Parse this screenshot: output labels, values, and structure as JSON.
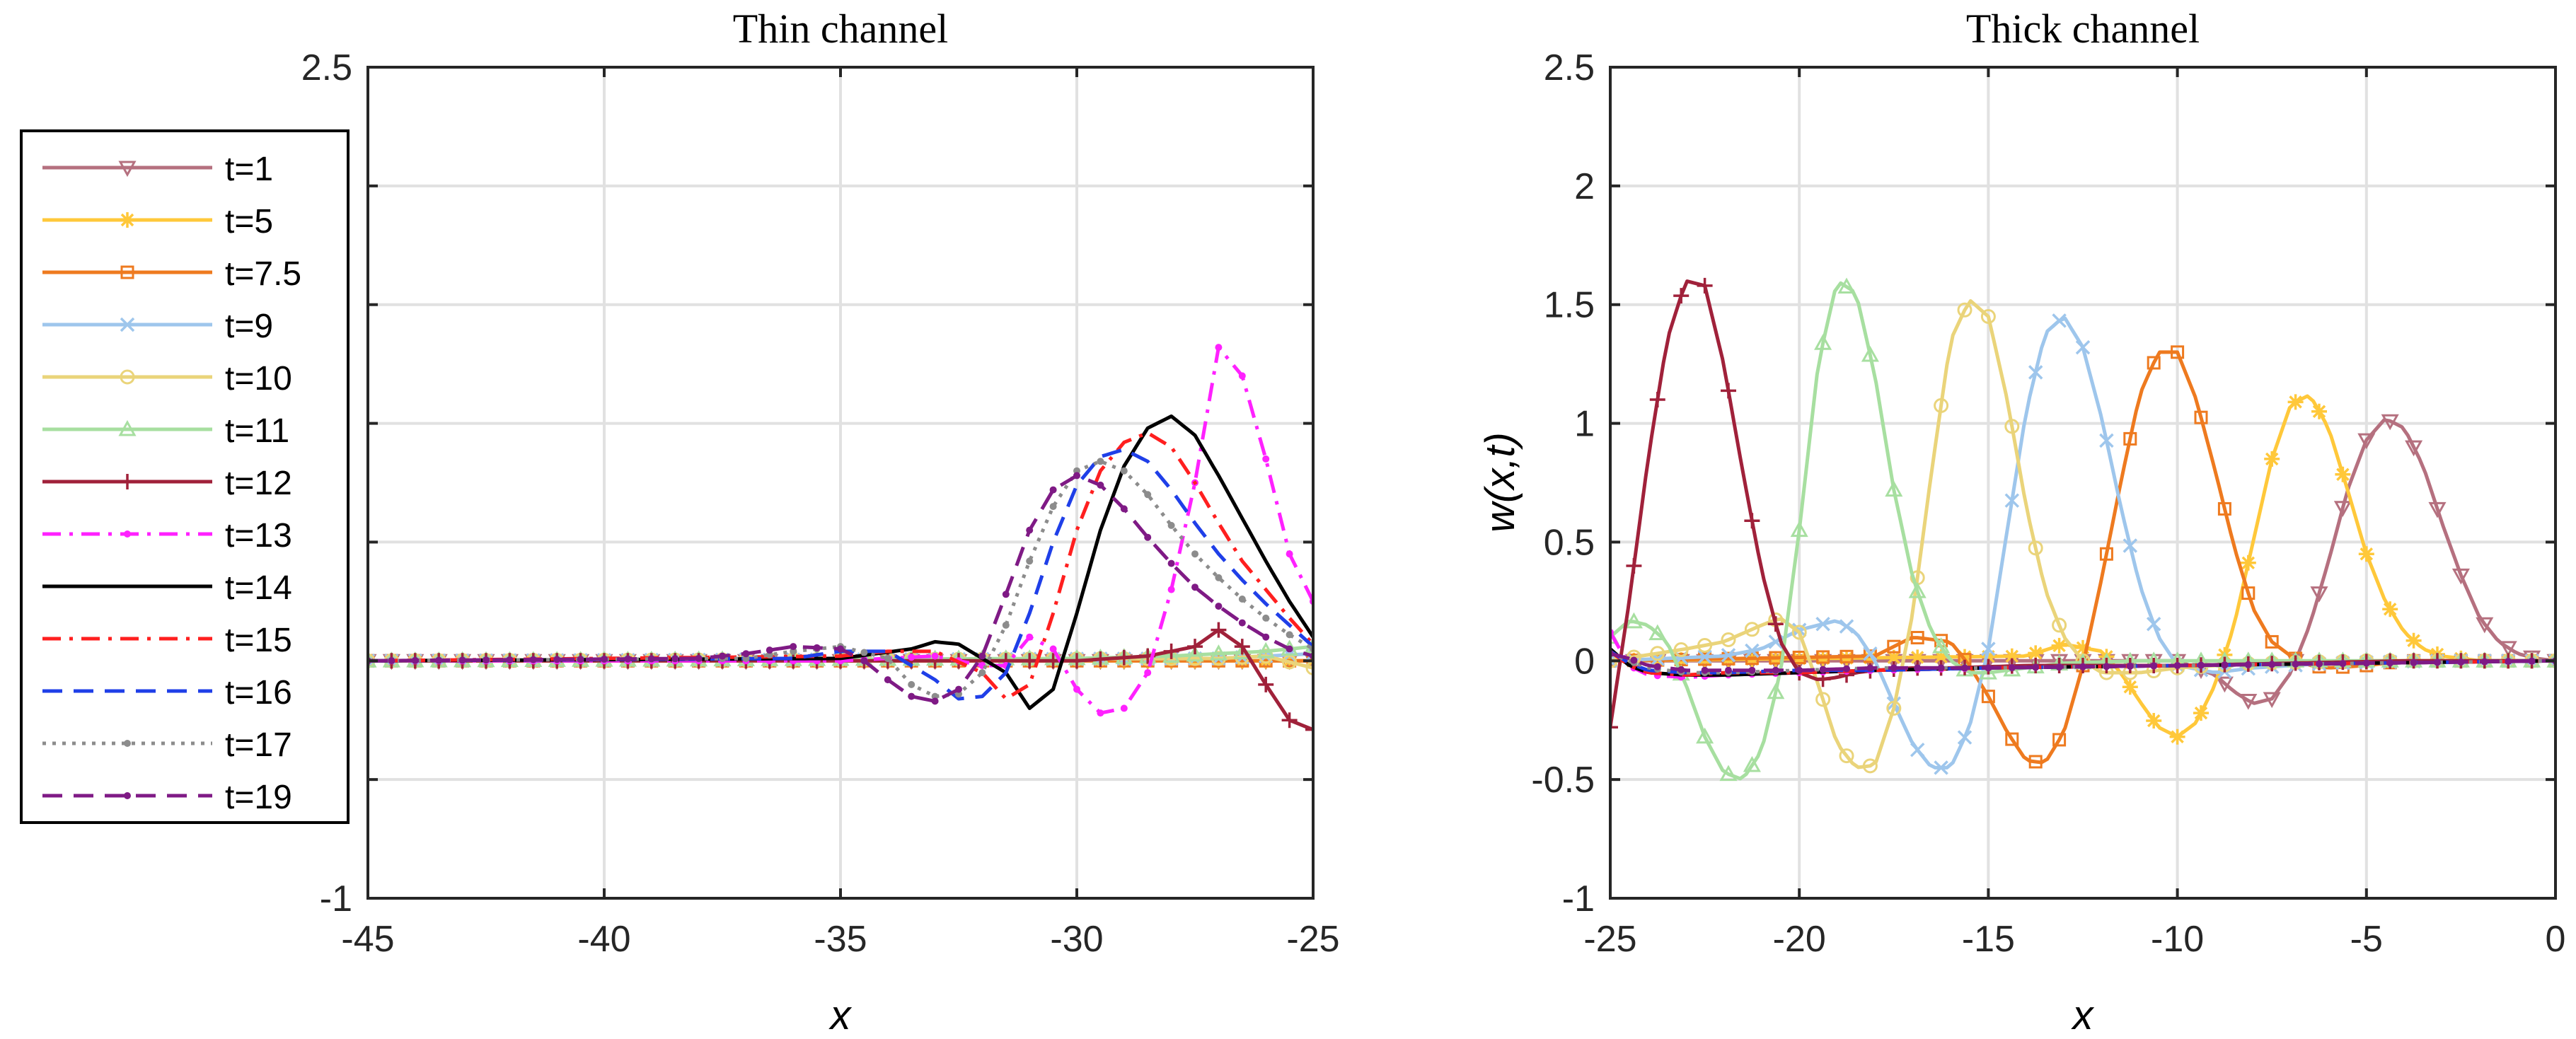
{
  "chart_data": [
    {
      "type": "line",
      "title": "Thin channel",
      "xlabel": "x",
      "ylabel": "",
      "xlim": [
        -45,
        -25
      ],
      "ylim": [
        -1,
        2.5
      ],
      "xticks": [
        -45,
        -40,
        -35,
        -30,
        -25
      ],
      "yticks": [
        -1,
        -0.5,
        0,
        0.5,
        1,
        1.5,
        2,
        2.5
      ],
      "ytick_labels_shown": [
        -1,
        2.5
      ],
      "grid": true,
      "series": [
        {
          "name": "t=1",
          "x": [
            -45,
            -25
          ],
          "y": [
            0,
            0
          ]
        },
        {
          "name": "t=5",
          "x": [
            -45,
            -25
          ],
          "y": [
            0,
            0
          ]
        },
        {
          "name": "t=7.5",
          "x": [
            -45,
            -25
          ],
          "y": [
            0,
            0
          ]
        },
        {
          "name": "t=9",
          "x": [
            -45,
            -27,
            -26,
            -25
          ],
          "y": [
            0,
            0.01,
            0.02,
            0.03
          ]
        },
        {
          "name": "t=10",
          "x": [
            -45,
            -27,
            -26,
            -25
          ],
          "y": [
            0,
            0.01,
            0.02,
            -0.03
          ]
        },
        {
          "name": "t=11",
          "x": [
            -45,
            -30,
            -28,
            -26,
            -25
          ],
          "y": [
            0,
            0.01,
            0.02,
            0.04,
            0.06
          ]
        },
        {
          "name": "t=12",
          "x": [
            -45,
            -30,
            -28.5,
            -27.5,
            -27,
            -26.5,
            -26,
            -25.5,
            -25
          ],
          "y": [
            0,
            0,
            0.02,
            0.06,
            0.13,
            0.06,
            -0.1,
            -0.25,
            -0.29
          ]
        },
        {
          "name": "t=13",
          "x": [
            -45,
            -35,
            -33,
            -32,
            -31.5,
            -31,
            -30.5,
            -30,
            -29.5,
            -29,
            -28.5,
            -28,
            -27.5,
            -27,
            -26.5,
            -26,
            -25.5,
            -25
          ],
          "y": [
            0,
            0,
            0.02,
            -0.02,
            -0.02,
            0.1,
            0.05,
            -0.12,
            -0.22,
            -0.2,
            -0.05,
            0.3,
            0.75,
            1.32,
            1.2,
            0.85,
            0.45,
            0.25
          ]
        },
        {
          "name": "t=14",
          "x": [
            -45,
            -35,
            -33.5,
            -33,
            -32.5,
            -31.5,
            -31,
            -30.5,
            -30,
            -29.5,
            -29,
            -28.5,
            -28,
            -27.5,
            -27,
            -26.5,
            -26,
            -25.5,
            -25
          ],
          "y": [
            0,
            0.01,
            0.05,
            0.08,
            0.07,
            -0.05,
            -0.2,
            -0.12,
            0.2,
            0.55,
            0.82,
            0.98,
            1.03,
            0.95,
            0.78,
            0.6,
            0.42,
            0.25,
            0.1
          ]
        },
        {
          "name": "t=15",
          "x": [
            -45,
            -35,
            -34,
            -33,
            -32,
            -31.5,
            -31,
            -30.5,
            -30,
            -29.5,
            -29,
            -28.5,
            -28,
            -27.5,
            -27,
            -26.5,
            -26,
            -25.5,
            -25
          ],
          "y": [
            0,
            0.02,
            0.04,
            0.04,
            -0.05,
            -0.16,
            -0.1,
            0.2,
            0.55,
            0.8,
            0.92,
            0.96,
            0.9,
            0.75,
            0.58,
            0.42,
            0.3,
            0.18,
            0.07
          ]
        },
        {
          "name": "t=16",
          "x": [
            -45,
            -36,
            -35,
            -34,
            -33,
            -32.5,
            -32,
            -31.5,
            -31,
            -30.5,
            -30,
            -29.5,
            -29,
            -28.5,
            -28,
            -27.5,
            -27,
            -26.5,
            -26,
            -25.5,
            -25
          ],
          "y": [
            0,
            0.01,
            0.04,
            0.04,
            -0.08,
            -0.16,
            -0.15,
            -0.05,
            0.2,
            0.5,
            0.74,
            0.86,
            0.89,
            0.84,
            0.72,
            0.58,
            0.45,
            0.34,
            0.24,
            0.15,
            0.06
          ]
        },
        {
          "name": "t=17",
          "x": [
            -45,
            -37,
            -36,
            -35,
            -34,
            -33.5,
            -33,
            -32.5,
            -32,
            -31.5,
            -31,
            -30.5,
            -30,
            -29.5,
            -29,
            -28.5,
            -28,
            -27.5,
            -27,
            -26.5,
            -26,
            -25.5,
            -25
          ],
          "y": [
            0,
            0.01,
            0.04,
            0.06,
            0.01,
            -0.1,
            -0.15,
            -0.14,
            -0.05,
            0.15,
            0.42,
            0.65,
            0.8,
            0.84,
            0.8,
            0.7,
            0.57,
            0.45,
            0.35,
            0.26,
            0.18,
            0.11,
            0.05
          ]
        },
        {
          "name": "t=19",
          "x": [
            -45,
            -38,
            -37,
            -36,
            -35,
            -34.5,
            -34,
            -33.5,
            -33,
            -32.5,
            -32,
            -31.5,
            -31,
            -30.5,
            -30,
            -29.5,
            -29,
            -28.5,
            -28,
            -27.5,
            -27,
            -26.5,
            -26,
            -25.5,
            -25
          ],
          "y": [
            0,
            0.01,
            0.03,
            0.06,
            0.05,
            0.0,
            -0.08,
            -0.15,
            -0.17,
            -0.12,
            0.02,
            0.28,
            0.55,
            0.72,
            0.78,
            0.74,
            0.64,
            0.52,
            0.41,
            0.31,
            0.23,
            0.16,
            0.1,
            0.05,
            0.02
          ]
        }
      ]
    },
    {
      "type": "line",
      "title": "Thick channel",
      "xlabel": "x",
      "ylabel": "w(x,t)",
      "xlim": [
        -25,
        0
      ],
      "ylim": [
        -1,
        2.5
      ],
      "xticks": [
        -25,
        -20,
        -15,
        -10,
        -5,
        0
      ],
      "yticks": [
        -1,
        -0.5,
        0,
        0.5,
        1,
        1.5,
        2,
        2.5
      ],
      "grid": true,
      "series": [
        {
          "name": "t=1",
          "x": [
            -25,
            -10,
            -9,
            -8.5,
            -8,
            -7.5,
            -7,
            -6.5,
            -6,
            -5.5,
            -5,
            -4.5,
            -4,
            -3.5,
            -3,
            -2.5,
            -2,
            -1.5,
            -1,
            -0.5,
            0
          ],
          "y": [
            0,
            0,
            -0.06,
            -0.13,
            -0.18,
            -0.16,
            -0.05,
            0.15,
            0.42,
            0.72,
            0.93,
            1.02,
            0.98,
            0.82,
            0.58,
            0.36,
            0.18,
            0.08,
            0.03,
            0.01,
            0
          ]
        },
        {
          "name": "t=5",
          "x": [
            -25,
            -14,
            -13,
            -12,
            -11.5,
            -11,
            -10.5,
            -10,
            -9.5,
            -9,
            -8.5,
            -8,
            -7.5,
            -7,
            -6.5,
            -6,
            -5.5,
            -5,
            -4.5,
            -4,
            -3.5,
            -3,
            -2,
            -1,
            0
          ],
          "y": [
            0,
            0.02,
            0.07,
            0.04,
            -0.05,
            -0.17,
            -0.28,
            -0.32,
            -0.26,
            -0.1,
            0.15,
            0.5,
            0.85,
            1.08,
            1.12,
            0.98,
            0.72,
            0.45,
            0.25,
            0.12,
            0.05,
            0.02,
            0,
            0,
            0
          ]
        },
        {
          "name": "t=7.5",
          "x": [
            -25,
            -18,
            -17,
            -16,
            -15.5,
            -15,
            -14.5,
            -14,
            -13.5,
            -13,
            -12.5,
            -12,
            -11.5,
            -11,
            -10.5,
            -10,
            -9.5,
            -9,
            -8.5,
            -8,
            -7.5,
            -7,
            -6.5,
            -6,
            -5,
            -4,
            -2,
            0
          ],
          "y": [
            0,
            0.02,
            0.1,
            0.08,
            -0.02,
            -0.15,
            -0.3,
            -0.42,
            -0.43,
            -0.3,
            -0.02,
            0.35,
            0.75,
            1.12,
            1.3,
            1.3,
            1.1,
            0.8,
            0.48,
            0.22,
            0.08,
            0.02,
            -0.02,
            -0.03,
            -0.02,
            0,
            0,
            0
          ]
        },
        {
          "name": "t=9",
          "x": [
            -25,
            -22,
            -21,
            -20,
            -19,
            -18.5,
            -18,
            -17.5,
            -17,
            -16.5,
            -16,
            -15.5,
            -15,
            -14.5,
            -14,
            -13.5,
            -13,
            -12.5,
            -12,
            -11.5,
            -11,
            -10.5,
            -10,
            -9,
            -8,
            -6,
            -3,
            0
          ],
          "y": [
            0,
            0.02,
            0.05,
            0.13,
            0.17,
            0.12,
            0.0,
            -0.18,
            -0.35,
            -0.45,
            -0.45,
            -0.28,
            0.05,
            0.55,
            1.05,
            1.38,
            1.45,
            1.32,
            1.02,
            0.65,
            0.32,
            0.1,
            -0.02,
            -0.05,
            -0.03,
            -0.01,
            0,
            0
          ]
        },
        {
          "name": "t=10",
          "x": [
            -25,
            -23,
            -22,
            -21,
            -20.5,
            -20,
            -19.5,
            -19,
            -18.5,
            -18,
            -17.5,
            -17,
            -16.5,
            -16,
            -15.5,
            -15,
            -14.5,
            -14,
            -13.5,
            -13,
            -12.5,
            -12,
            -11,
            -10,
            -8,
            -5,
            0
          ],
          "y": [
            0,
            0.05,
            0.08,
            0.15,
            0.18,
            0.12,
            -0.1,
            -0.35,
            -0.45,
            -0.44,
            -0.2,
            0.2,
            0.8,
            1.35,
            1.52,
            1.45,
            1.1,
            0.65,
            0.3,
            0.1,
            0.0,
            -0.05,
            -0.05,
            -0.03,
            -0.01,
            0,
            0
          ]
        },
        {
          "name": "t=11",
          "x": [
            -25,
            -24.5,
            -24,
            -23.5,
            -23,
            -22.5,
            -22,
            -21.5,
            -21,
            -20.5,
            -20,
            -19.5,
            -19,
            -18.5,
            -18,
            -17.5,
            -17,
            -16.5,
            -16,
            -15.5,
            -15,
            -14,
            -13,
            -11,
            -8,
            -5,
            0
          ],
          "y": [
            0.1,
            0.17,
            0.15,
            0.08,
            -0.1,
            -0.32,
            -0.47,
            -0.5,
            -0.38,
            -0.05,
            0.55,
            1.25,
            1.6,
            1.55,
            1.2,
            0.72,
            0.35,
            0.12,
            0.0,
            -0.05,
            -0.05,
            -0.03,
            -0.01,
            0,
            0,
            0,
            0
          ]
        },
        {
          "name": "t=12",
          "x": [
            -25,
            -24.5,
            -24,
            -23.5,
            -23,
            -22.5,
            -22,
            -21.5,
            -21,
            -20.5,
            -20,
            -19.5,
            -19,
            -18.5,
            -18,
            -17,
            -16,
            -14,
            -12,
            -10,
            -7,
            -4,
            -2,
            0
          ],
          "y": [
            -0.28,
            0.25,
            0.85,
            1.35,
            1.6,
            1.58,
            1.25,
            0.8,
            0.38,
            0.08,
            -0.05,
            -0.08,
            -0.07,
            -0.05,
            -0.04,
            -0.03,
            -0.03,
            -0.02,
            -0.02,
            -0.02,
            -0.01,
            0,
            0,
            0
          ]
        },
        {
          "name": "t=13",
          "x": [
            -25,
            -24.5,
            -24,
            -23,
            -22,
            -20,
            -18,
            -15,
            -10,
            -5,
            0
          ],
          "y": [
            0.12,
            -0.02,
            -0.06,
            -0.07,
            -0.06,
            -0.05,
            -0.04,
            -0.03,
            -0.02,
            -0.01,
            0
          ]
        },
        {
          "name": "t=14",
          "x": [
            -25,
            -24.5,
            -24,
            -23,
            -22,
            -20,
            -18,
            -15,
            -10,
            -5,
            0
          ],
          "y": [
            0.05,
            -0.02,
            -0.05,
            -0.06,
            -0.06,
            -0.05,
            -0.04,
            -0.03,
            -0.02,
            -0.01,
            0
          ]
        },
        {
          "name": "t=15",
          "x": [
            -25,
            -24.5,
            -24,
            -23,
            -22,
            -20,
            -18,
            -15,
            -10,
            -5,
            0
          ],
          "y": [
            0.04,
            -0.02,
            -0.05,
            -0.06,
            -0.05,
            -0.05,
            -0.04,
            -0.03,
            -0.02,
            -0.01,
            0
          ]
        },
        {
          "name": "t=16",
          "x": [
            -25,
            -24.5,
            -24,
            -23,
            -22,
            -20,
            -18,
            -15,
            -10,
            -5,
            0
          ],
          "y": [
            0.04,
            -0.01,
            -0.04,
            -0.05,
            -0.05,
            -0.04,
            -0.04,
            -0.03,
            -0.02,
            -0.01,
            0
          ]
        },
        {
          "name": "t=17",
          "x": [
            -25,
            -24.5,
            -24,
            -23,
            -22,
            -20,
            -18,
            -15,
            -10,
            -5,
            0
          ],
          "y": [
            0.03,
            0.0,
            -0.03,
            -0.05,
            -0.05,
            -0.04,
            -0.03,
            -0.03,
            -0.02,
            -0.01,
            0
          ]
        },
        {
          "name": "t=19",
          "x": [
            -25,
            -24.5,
            -24,
            -23,
            -22,
            -20,
            -18,
            -15,
            -10,
            -5,
            0
          ],
          "y": [
            0.03,
            0.01,
            -0.02,
            -0.04,
            -0.04,
            -0.04,
            -0.03,
            -0.03,
            -0.02,
            -0.01,
            0
          ]
        }
      ]
    }
  ],
  "legend": {
    "placement": "left",
    "entries": [
      {
        "label": "t=1",
        "color": "#B5707F",
        "dash": "solid",
        "marker": "triangle-down"
      },
      {
        "label": "t=5",
        "color": "#FFC83A",
        "dash": "solid",
        "marker": "star"
      },
      {
        "label": "t=7.5",
        "color": "#EE7A1F",
        "dash": "solid",
        "marker": "square"
      },
      {
        "label": "t=9",
        "color": "#9EC6EC",
        "dash": "solid",
        "marker": "x"
      },
      {
        "label": "t=10",
        "color": "#EAD47A",
        "dash": "solid",
        "marker": "circle"
      },
      {
        "label": "t=11",
        "color": "#A7DFA0",
        "dash": "solid",
        "marker": "triangle-up"
      },
      {
        "label": "t=12",
        "color": "#A0213A",
        "dash": "solid",
        "marker": "plus"
      },
      {
        "label": "t=13",
        "color": "#FF21FF",
        "dash": "dashdot",
        "marker": "dot"
      },
      {
        "label": "t=14",
        "color": "#000000",
        "dash": "solid",
        "marker": "none"
      },
      {
        "label": "t=15",
        "color": "#FF1F1F",
        "dash": "dashdot",
        "marker": "none"
      },
      {
        "label": "t=16",
        "color": "#1F3FE8",
        "dash": "dashed",
        "marker": "none"
      },
      {
        "label": "t=17",
        "color": "#8C8C8C",
        "dash": "dotted",
        "marker": "dot"
      },
      {
        "label": "t=19",
        "color": "#7F1A85",
        "dash": "dashed",
        "marker": "dot"
      }
    ]
  }
}
